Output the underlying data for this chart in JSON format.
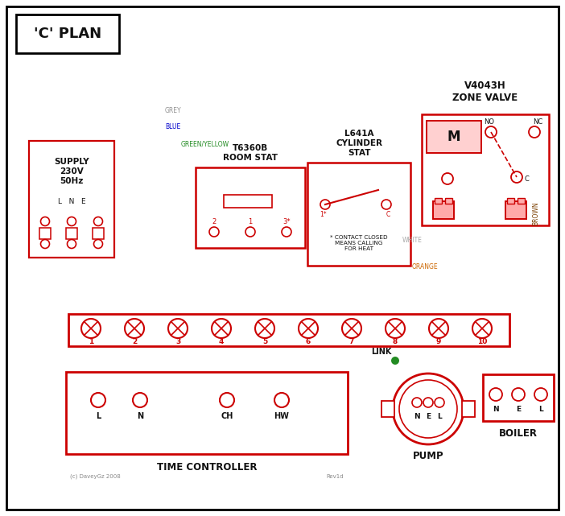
{
  "bg": "#ffffff",
  "grey": "#909090",
  "blue": "#0000cc",
  "gy": "#228B22",
  "brown": "#7B3F00",
  "black": "#111111",
  "white_w": "#aaaaaa",
  "orange": "#CC6600",
  "green": "#006400",
  "red": "#cc0000",
  "title": "'C' PLAN",
  "supply": "SUPPLY\n230V\n50Hz",
  "lne": "L   N   E",
  "zv_lbl": "V4043H\nZONE VALVE",
  "rs_lbl": "T6360B\nROOM STAT",
  "cs_lbl": "L641A\nCYLINDER\nSTAT",
  "tc_lbl": "TIME CONTROLLER",
  "pump_lbl": "PUMP",
  "boiler_lbl": "BOILER",
  "link_lbl": "LINK",
  "grey_lbl": "GREY",
  "blue_lbl": "BLUE",
  "gy_lbl": "GREEN/YELLOW",
  "brown_lbl": "BROWN",
  "white_lbl": "WHITE",
  "orange_lbl": "ORANGE",
  "copy_lbl": "(c) DaveyGz 2008",
  "rev_lbl": "Rev1d"
}
